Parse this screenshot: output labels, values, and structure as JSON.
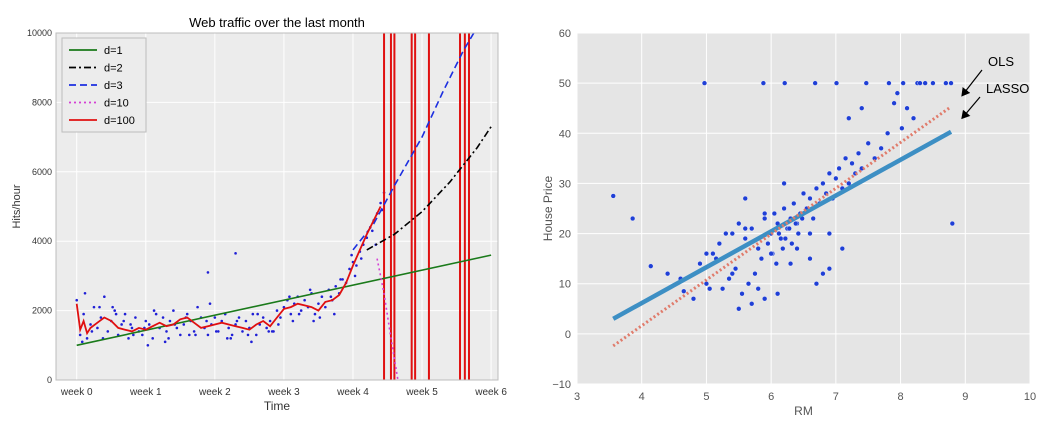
{
  "chart_data": [
    {
      "type": "line",
      "title": "Web traffic over the last month",
      "xlabel": "Time",
      "ylabel": "Hits/hour",
      "xlim": [
        -0.3,
        6.1
      ],
      "ylim": [
        0,
        10000
      ],
      "x_ticks": [
        0,
        1,
        2,
        3,
        4,
        5,
        6
      ],
      "x_tick_labels": [
        "week 0",
        "week 1",
        "week 2",
        "week 3",
        "week 4",
        "week 5",
        "week 6"
      ],
      "y_ticks": [
        0,
        2000,
        4000,
        6000,
        8000,
        10000
      ],
      "y_tick_labels": [
        "0",
        "2000",
        "4000",
        "6000",
        "8000",
        "10000"
      ],
      "grid": true,
      "legend_placement": "top-left",
      "scatter_color": "#1f1fd6",
      "series": [
        {
          "name": "d=1",
          "color": "#1a7a1a",
          "style": "solid",
          "x": [
            0,
            6
          ],
          "y": [
            1000,
            3600
          ]
        },
        {
          "name": "d=2",
          "color": "#000000",
          "style": "dashdot",
          "x": [
            4.2,
            4.6,
            5.0,
            5.4,
            5.8,
            6.0
          ],
          "y": [
            3750,
            4200,
            4850,
            5700,
            6700,
            7300
          ]
        },
        {
          "name": "d=3",
          "color": "#1c2fe0",
          "style": "dashed",
          "x": [
            4.0,
            4.3,
            4.6,
            5.0,
            5.3,
            5.6,
            5.75
          ],
          "y": [
            3750,
            4500,
            5600,
            7000,
            8300,
            9500,
            10000
          ]
        },
        {
          "name": "d=10",
          "color": "#d43fd4",
          "style": "dotted",
          "x": [
            4.35,
            4.45,
            4.55,
            4.65
          ],
          "y": [
            3500,
            2500,
            1200,
            0
          ]
        },
        {
          "name": "d=100",
          "color": "#e01010",
          "style": "solid",
          "x": [
            0.0,
            0.05,
            0.1,
            0.15,
            0.2,
            0.3,
            0.4,
            0.5,
            0.6,
            0.7,
            0.8,
            0.9,
            1.0,
            1.1,
            1.2,
            1.3,
            1.4,
            1.5,
            1.6,
            1.7,
            1.8,
            1.9,
            2.0,
            2.1,
            2.2,
            2.3,
            2.4,
            2.5,
            2.6,
            2.7,
            2.8,
            2.9,
            3.0,
            3.1,
            3.2,
            3.3,
            3.4,
            3.5,
            3.6,
            3.7,
            3.8,
            3.9,
            4.0,
            4.1,
            4.2,
            4.3,
            4.4
          ],
          "y": [
            2200,
            1450,
            1700,
            1350,
            1500,
            1650,
            1800,
            1700,
            1500,
            1450,
            1400,
            1500,
            1450,
            1550,
            1650,
            1550,
            1600,
            1750,
            1800,
            1650,
            1500,
            1550,
            1600,
            1650,
            1600,
            1550,
            1500,
            1450,
            1600,
            1700,
            1550,
            1800,
            2050,
            2100,
            2200,
            2150,
            2100,
            2000,
            2250,
            2300,
            2450,
            2800,
            3300,
            3750,
            4200,
            4600,
            5000
          ]
        }
      ],
      "vertical_spikes_x": [
        4.45,
        4.55,
        4.6,
        4.85,
        4.9,
        5.1,
        5.55,
        5.62,
        5.68
      ],
      "scatter_points": {
        "x": [
          0.0,
          0.05,
          0.1,
          0.15,
          0.2,
          0.25,
          0.3,
          0.35,
          0.4,
          0.45,
          0.5,
          0.55,
          0.6,
          0.65,
          0.7,
          0.75,
          0.8,
          0.85,
          0.9,
          0.95,
          1.0,
          1.05,
          1.1,
          1.15,
          1.2,
          1.25,
          1.3,
          1.35,
          1.4,
          1.45,
          1.5,
          1.55,
          1.6,
          1.65,
          1.7,
          1.75,
          1.8,
          1.85,
          1.9,
          1.95,
          2.0,
          2.05,
          2.1,
          2.15,
          2.2,
          2.25,
          2.3,
          2.35,
          2.4,
          2.45,
          2.5,
          2.55,
          2.6,
          2.65,
          2.7,
          2.75,
          2.8,
          2.85,
          2.9,
          2.95,
          3.0,
          3.05,
          3.1,
          3.15,
          3.2,
          3.25,
          3.3,
          3.35,
          3.4,
          3.45,
          3.5,
          3.55,
          3.6,
          3.65,
          3.7,
          3.75,
          3.8,
          3.85,
          3.9,
          3.95,
          4.0,
          4.05,
          4.1,
          4.15,
          4.2,
          4.25,
          4.3,
          4.35,
          4.4,
          0.08,
          0.22,
          0.38,
          0.52,
          0.68,
          0.82,
          0.98,
          1.12,
          1.28,
          1.42,
          1.58,
          1.72,
          1.88,
          2.02,
          2.18,
          2.32,
          2.48,
          2.62,
          2.78,
          2.92,
          3.08,
          3.22,
          3.38,
          3.52,
          3.68,
          3.82,
          3.98,
          4.12,
          4.28,
          4.42,
          0.12,
          0.33,
          0.57,
          0.78,
          1.03,
          1.33,
          1.63,
          1.93,
          2.23,
          2.53,
          2.83,
          3.13,
          3.43,
          3.73,
          4.03,
          4.33,
          1.9,
          2.3,
          4.45
        ],
        "y": [
          2300,
          1300,
          1900,
          1200,
          1600,
          2100,
          1500,
          1800,
          2400,
          1400,
          1700,
          2000,
          1300,
          1600,
          1900,
          1200,
          1500,
          1800,
          1400,
          1300,
          1700,
          1600,
          1200,
          1900,
          1500,
          1800,
          1400,
          1700,
          2000,
          1500,
          1300,
          1600,
          1900,
          1700,
          1400,
          2100,
          1800,
          1500,
          1300,
          1600,
          1800,
          1400,
          1700,
          1900,
          1500,
          1300,
          1600,
          1800,
          1400,
          1700,
          1500,
          1900,
          1300,
          1600,
          1800,
          1500,
          1700,
          1400,
          2000,
          1800,
          2100,
          2300,
          1900,
          2200,
          2400,
          2000,
          2300,
          2100,
          2500,
          1900,
          2200,
          2400,
          2100,
          2600,
          2300,
          2700,
          2500,
          2900,
          2800,
          3200,
          3400,
          3300,
          3700,
          3900,
          4100,
          4400,
          4600,
          4800,
          5100,
          1100,
          1400,
          1200,
          2100,
          1700,
          1300,
          1500,
          2000,
          1100,
          1600,
          1800,
          1300,
          1700,
          1400,
          1200,
          1700,
          1300,
          1900,
          1400,
          1600,
          2400,
          1900,
          2600,
          1800,
          2400,
          2900,
          3600,
          3500,
          4300,
          4900,
          2500,
          2100,
          1900,
          1600,
          1000,
          1200,
          1300,
          2200,
          1200,
          1100,
          1400,
          1700,
          1700,
          1900,
          3000,
          3900,
          3100,
          3650,
          5400
        ]
      }
    },
    {
      "type": "scatter",
      "title": "",
      "xlabel": "RM",
      "ylabel": "House Price",
      "xlim": [
        3,
        10
      ],
      "ylim": [
        -10,
        60
      ],
      "x_ticks": [
        3,
        4,
        5,
        6,
        7,
        8,
        9,
        10
      ],
      "y_ticks": [
        -10,
        0,
        10,
        20,
        30,
        40,
        50,
        60
      ],
      "grid": true,
      "point_color": "#1f3fd6",
      "lines": [
        {
          "name": "OLS",
          "color": "#3d8fc4",
          "style": "solid",
          "x": [
            3.56,
            8.78
          ],
          "y": [
            3.0,
            40.3
          ]
        },
        {
          "name": "LASSO",
          "color": "#e07b6b",
          "style": "dotted",
          "x": [
            3.56,
            8.78
          ],
          "y": [
            -2.4,
            45.3
          ]
        }
      ],
      "annotations": [
        {
          "text": "OLS",
          "arrow_to": [
            8.95,
            47.5
          ]
        },
        {
          "text": "LASSO",
          "arrow_to": [
            8.95,
            43.0
          ]
        }
      ],
      "scatter_points": {
        "x": [
          3.56,
          3.86,
          4.14,
          4.65,
          4.97,
          5.88,
          6.21,
          6.68,
          7.01,
          7.47,
          7.82,
          8.04,
          8.26,
          8.3,
          8.38,
          8.7,
          8.78,
          8.1,
          8.2,
          7.9,
          7.95,
          8.02,
          8.5,
          4.9,
          5.0,
          5.1,
          5.2,
          5.3,
          5.4,
          5.5,
          5.6,
          5.7,
          5.8,
          5.9,
          6.0,
          6.05,
          6.1,
          6.15,
          6.2,
          6.25,
          6.3,
          6.35,
          6.4,
          6.45,
          6.5,
          6.55,
          6.6,
          6.65,
          6.7,
          6.75,
          6.8,
          6.85,
          6.9,
          6.95,
          7.0,
          7.05,
          7.1,
          7.15,
          7.2,
          7.25,
          7.3,
          7.35,
          7.4,
          7.5,
          7.6,
          7.7,
          7.8,
          5.85,
          5.95,
          6.02,
          6.08,
          6.12,
          6.18,
          6.22,
          6.28,
          6.32,
          6.38,
          6.42,
          6.48,
          5.75,
          5.65,
          5.55,
          5.45,
          5.35,
          5.25,
          5.15,
          6.6,
          6.7,
          6.8,
          5.9,
          5.7,
          6.1,
          6.3,
          5.8,
          5.5,
          6.9,
          7.1,
          4.6,
          4.4,
          4.8,
          5.05,
          5.6,
          6.5,
          6.2,
          5.9,
          5.6,
          6.0,
          7.2,
          7.4,
          8.8,
          6.4,
          6.9,
          5.4,
          5.2,
          5.0,
          6.6
        ],
        "y": [
          27.5,
          23.0,
          13.5,
          8.5,
          50,
          50,
          50,
          50,
          50,
          50,
          50,
          50,
          50,
          50,
          50,
          50,
          50,
          45,
          43,
          46,
          48,
          41,
          50,
          14,
          10,
          16,
          18,
          20,
          12,
          22,
          19,
          21,
          17,
          23,
          20,
          24,
          22,
          19,
          25,
          21,
          23,
          26,
          22,
          24,
          28,
          25,
          27,
          23,
          29,
          26,
          30,
          28,
          32,
          27,
          31,
          33,
          29,
          35,
          30,
          34,
          32,
          36,
          33,
          38,
          35,
          37,
          40,
          15,
          18,
          16,
          14,
          20,
          17,
          19,
          21,
          18,
          22,
          20,
          23,
          12,
          10,
          8,
          13,
          11,
          9,
          15,
          15,
          10,
          12,
          7,
          6,
          8,
          14,
          9,
          5,
          13,
          17,
          11,
          12,
          7,
          9,
          27,
          28,
          30,
          24,
          21,
          16,
          43,
          45,
          22,
          17,
          20,
          20,
          18,
          16,
          20
        ]
      }
    }
  ]
}
